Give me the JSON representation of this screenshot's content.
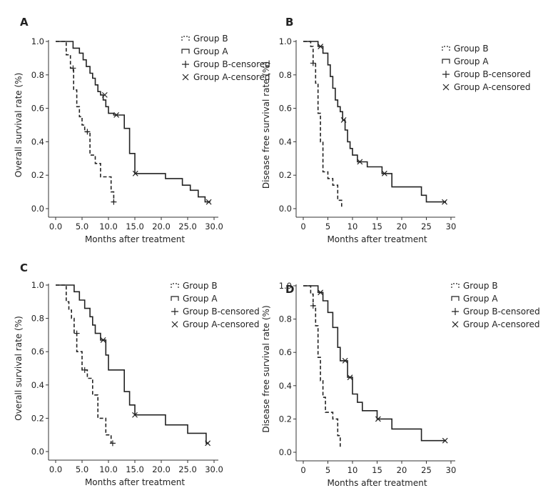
{
  "chart_data": [
    {
      "panel": "A",
      "type": "line",
      "ylabel": "Overall survival rate (%)",
      "xlabel": "Months after treatment",
      "xlim": [
        0,
        30
      ],
      "ylim": [
        0,
        1.0
      ],
      "xticks": [
        "0.0",
        "5.0",
        "10.0",
        "15.0",
        "20.0",
        "25.0",
        "30.0"
      ],
      "yticks": [
        "0.0",
        "0.2",
        "0.4",
        "0.6",
        "0.8",
        "1.0"
      ],
      "legend": [
        "Group B",
        "Group A",
        "Group B-censored",
        "Group A-censored"
      ],
      "series": [
        {
          "name": "Group A",
          "x": [
            0,
            3.3,
            4.5,
            5.2,
            5.8,
            6.5,
            7.0,
            7.5,
            8.0,
            8.5,
            9.0,
            9.5,
            10.0,
            11.0,
            13.0,
            14.0,
            15.0,
            20.8,
            24.0,
            25.5,
            27.0,
            28.3,
            29.3
          ],
          "y": [
            1.0,
            0.96,
            0.93,
            0.89,
            0.85,
            0.81,
            0.78,
            0.74,
            0.7,
            0.68,
            0.65,
            0.61,
            0.57,
            0.56,
            0.48,
            0.33,
            0.21,
            0.18,
            0.14,
            0.11,
            0.07,
            0.04,
            0.04
          ]
        },
        {
          "name": "Group B",
          "x": [
            0,
            2.0,
            2.8,
            3.4,
            4.0,
            4.5,
            5.0,
            5.5,
            6.5,
            7.5,
            8.5,
            10.5,
            11.0
          ],
          "y": [
            1.0,
            0.92,
            0.84,
            0.71,
            0.61,
            0.55,
            0.5,
            0.46,
            0.32,
            0.27,
            0.19,
            0.1,
            0.04
          ]
        }
      ],
      "censored": {
        "Group B": [
          [
            3.3,
            0.84
          ],
          [
            6.0,
            0.46
          ],
          [
            11.0,
            0.04
          ]
        ],
        "Group A": [
          [
            9.3,
            0.68
          ],
          [
            11.5,
            0.56
          ],
          [
            15.1,
            0.21
          ],
          [
            29.0,
            0.04
          ]
        ]
      }
    },
    {
      "panel": "B",
      "type": "line",
      "ylabel": "Disease free survival rate (%)",
      "xlabel": "Months after treatment",
      "xlim": [
        0,
        30
      ],
      "ylim": [
        0,
        1.0
      ],
      "xticks": [
        "0",
        "5",
        "10",
        "15",
        "20",
        "25",
        "30"
      ],
      "yticks": [
        "0.0",
        "0.2",
        "0.4",
        "0.6",
        "0.8",
        "1.0"
      ],
      "legend": [
        "Group B",
        "Group A",
        "Group B-censored",
        "Group A-censored"
      ],
      "series": [
        {
          "name": "Group A",
          "x": [
            0,
            3.0,
            4.0,
            5.0,
            5.5,
            6.0,
            6.5,
            7.0,
            7.5,
            8.0,
            8.5,
            9.0,
            9.5,
            10.0,
            11.0,
            13.0,
            16.0,
            18.0,
            24.0,
            25.0,
            29.0
          ],
          "y": [
            1.0,
            0.97,
            0.93,
            0.86,
            0.79,
            0.72,
            0.65,
            0.61,
            0.58,
            0.53,
            0.47,
            0.4,
            0.36,
            0.32,
            0.28,
            0.25,
            0.21,
            0.13,
            0.08,
            0.04,
            0.04
          ]
        },
        {
          "name": "Group B",
          "x": [
            0,
            1.5,
            2.0,
            2.5,
            3.0,
            3.5,
            4.0,
            5.0,
            6.0,
            7.0,
            7.8
          ],
          "y": [
            1.0,
            0.97,
            0.87,
            0.75,
            0.57,
            0.4,
            0.22,
            0.18,
            0.14,
            0.05,
            0.0
          ]
        }
      ],
      "censored": {
        "Group B": [
          [
            2.0,
            0.87
          ]
        ],
        "Group A": [
          [
            3.5,
            0.97
          ],
          [
            8.2,
            0.53
          ],
          [
            11.5,
            0.28
          ],
          [
            16.5,
            0.21
          ],
          [
            28.7,
            0.04
          ]
        ]
      }
    },
    {
      "panel": "C",
      "type": "line",
      "ylabel": "Overall survival rate (%)",
      "xlabel": "Months after treatment",
      "xlim": [
        0,
        30
      ],
      "ylim": [
        0,
        1.0
      ],
      "xticks": [
        "0.0",
        "5.0",
        "10.0",
        "15.0",
        "20.0",
        "25.0",
        "30.0"
      ],
      "yticks": [
        "0.0",
        "0.2",
        "0.4",
        "0.6",
        "0.8",
        "1.0"
      ],
      "legend": [
        "Group B",
        "Group A",
        "Group B-censored",
        "Group A-censored"
      ],
      "series": [
        {
          "name": "Group A",
          "x": [
            0,
            3.5,
            4.5,
            5.5,
            6.5,
            7.0,
            7.5,
            8.5,
            9.5,
            10.0,
            13.0,
            14.0,
            15.0,
            20.8,
            25.0,
            28.5,
            29.0
          ],
          "y": [
            1.0,
            0.96,
            0.91,
            0.86,
            0.81,
            0.76,
            0.71,
            0.67,
            0.58,
            0.49,
            0.36,
            0.28,
            0.22,
            0.16,
            0.11,
            0.05,
            0.05
          ]
        },
        {
          "name": "Group B",
          "x": [
            0,
            2.0,
            2.5,
            3.0,
            3.5,
            4.0,
            5.0,
            6.0,
            7.0,
            8.0,
            9.5,
            10.5
          ],
          "y": [
            1.0,
            0.9,
            0.85,
            0.8,
            0.71,
            0.6,
            0.49,
            0.44,
            0.34,
            0.2,
            0.1,
            0.05
          ]
        }
      ],
      "censored": {
        "Group B": [
          [
            4.0,
            0.71
          ],
          [
            5.5,
            0.49
          ],
          [
            10.8,
            0.05
          ]
        ],
        "Group A": [
          [
            9.0,
            0.67
          ],
          [
            15.0,
            0.22
          ],
          [
            28.8,
            0.05
          ]
        ]
      }
    },
    {
      "panel": "D",
      "type": "line",
      "ylabel": "Disease free survival rate (%)",
      "xlabel": "Months after treatment",
      "xlim": [
        0,
        30
      ],
      "ylim": [
        0,
        1.0
      ],
      "xticks": [
        "0",
        "5",
        "10",
        "15",
        "20",
        "25",
        "30"
      ],
      "yticks": [
        "0.0",
        "0.2",
        "0.4",
        "0.6",
        "0.8",
        "1.0"
      ],
      "legend": [
        "Group B",
        "Group A",
        "Group B-censored",
        "Group A-censored"
      ],
      "series": [
        {
          "name": "Group A",
          "x": [
            0,
            3.0,
            4.0,
            5.0,
            6.0,
            7.0,
            7.5,
            8.0,
            9.0,
            10.0,
            11.0,
            12.0,
            15.0,
            18.0,
            24.0,
            29.0
          ],
          "y": [
            1.0,
            0.96,
            0.91,
            0.84,
            0.75,
            0.63,
            0.55,
            0.55,
            0.45,
            0.35,
            0.3,
            0.25,
            0.2,
            0.14,
            0.07,
            0.07
          ]
        },
        {
          "name": "Group B",
          "x": [
            0,
            1.5,
            2.0,
            2.5,
            3.0,
            3.5,
            4.0,
            4.5,
            6.0,
            7.0,
            7.5
          ],
          "y": [
            1.0,
            0.95,
            0.88,
            0.76,
            0.57,
            0.43,
            0.33,
            0.24,
            0.2,
            0.1,
            0.02
          ]
        }
      ],
      "censored": {
        "Group B": [
          [
            2.0,
            0.88
          ]
        ],
        "Group A": [
          [
            3.5,
            0.96
          ],
          [
            8.5,
            0.55
          ],
          [
            9.5,
            0.45
          ],
          [
            15.2,
            0.2
          ],
          [
            28.8,
            0.07
          ]
        ]
      }
    }
  ]
}
